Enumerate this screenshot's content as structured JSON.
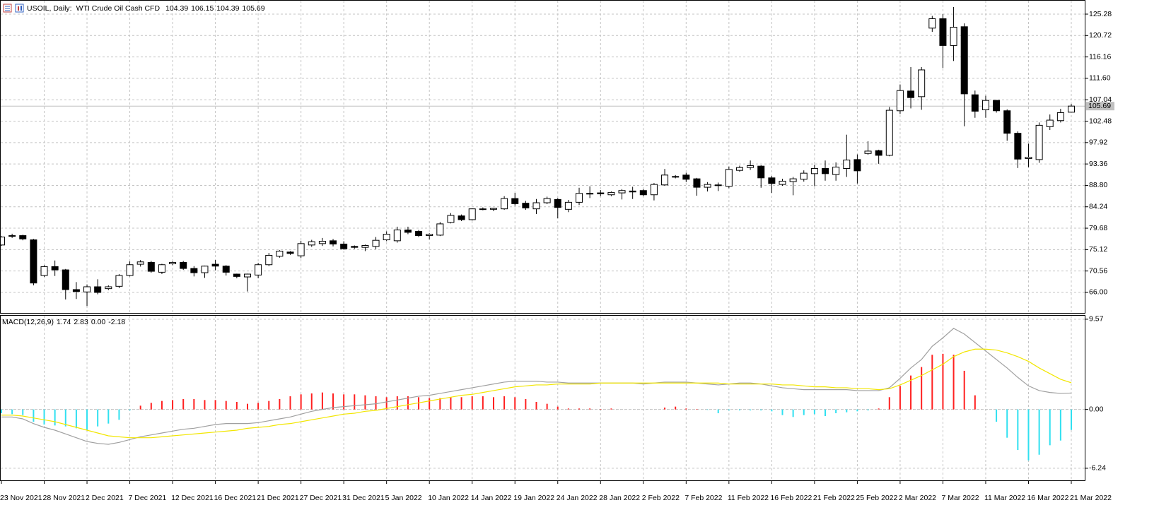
{
  "chart_data": [
    {
      "type": "candlestick",
      "title": "USOIL, Daily:",
      "subtitle": "WTI Crude Oil Cash CFD",
      "categories": [
        "23 Nov 2021",
        null,
        null,
        null,
        "28 Nov 2021",
        null,
        null,
        null,
        "2 Dec 2021",
        null,
        null,
        null,
        "7 Dec 2021",
        null,
        null,
        null,
        "12 Dec 2021",
        null,
        null,
        null,
        "16 Dec 2021",
        null,
        null,
        null,
        "21 Dec 2021",
        null,
        null,
        null,
        "27 Dec 2021",
        null,
        null,
        null,
        "31 Dec 2021",
        null,
        null,
        null,
        "5 Jan 2022",
        null,
        null,
        null,
        "10 Jan 2022",
        null,
        null,
        null,
        "14 Jan 2022",
        null,
        null,
        null,
        "19 Jan 2022",
        null,
        null,
        null,
        "24 Jan 2022",
        null,
        null,
        null,
        "28 Jan 2022",
        null,
        null,
        null,
        "2 Feb 2022",
        null,
        null,
        null,
        "7 Feb 2022",
        null,
        null,
        null,
        "11 Feb 2022",
        null,
        null,
        null,
        "16 Feb 2022",
        null,
        null,
        null,
        "21 Feb 2022",
        null,
        null,
        null,
        "25 Feb 2022",
        null,
        null,
        null,
        "2 Mar 2022",
        null,
        null,
        null,
        "7 Mar 2022",
        null,
        null,
        null,
        "11 Mar 2022",
        null,
        null,
        null,
        "16 Mar 2022",
        null,
        null,
        null,
        "21 Mar 2022"
      ],
      "open": [
        76.1,
        78.1,
        78.1,
        77.2,
        69.6,
        71.5,
        70.8,
        66.6,
        66.1,
        67.2,
        66.8,
        67.3,
        69.6,
        72.0,
        72.4,
        70.3,
        72.1,
        72.4,
        71.1,
        70.2,
        72.0,
        71.6,
        69.9,
        69.3,
        69.7,
        71.9,
        73.7,
        74.6,
        73.8,
        76.1,
        76.4,
        77.0,
        76.3,
        75.8,
        75.6,
        75.8,
        77.2,
        77.0,
        79.3,
        79.0,
        78.1,
        78.2,
        80.9,
        82.3,
        81.5,
        83.8,
        83.7,
        83.8,
        86.0,
        85.0,
        83.8,
        85.1,
        85.8,
        83.7,
        85.2,
        87.0,
        87.2,
        86.8,
        87.2,
        87.6,
        87.7,
        86.8,
        88.9,
        90.6,
        91.0,
        90.2,
        88.4,
        88.8,
        88.6,
        92.0,
        92.6,
        92.9,
        90.4,
        89.0,
        89.6,
        90.1,
        91.3,
        92.4,
        91.1,
        92.4,
        94.3,
        95.6,
        96.2,
        95.2,
        104.7,
        108.9,
        107.7,
        122.3,
        124.3,
        118.6,
        122.6,
        108.1,
        104.9,
        106.9,
        104.7,
        99.9,
        94.5,
        94.3,
        101.3,
        102.6,
        104.39
      ],
      "high": [
        78.0,
        78.5,
        78.3,
        77.4,
        71.8,
        72.8,
        71.0,
        68.2,
        67.7,
        68.8,
        67.5,
        69.9,
        72.6,
        72.9,
        72.7,
        72.1,
        72.6,
        72.7,
        71.6,
        71.7,
        72.9,
        71.8,
        70.0,
        70.0,
        72.3,
        74.4,
        75.0,
        74.8,
        77.0,
        77.2,
        77.6,
        77.4,
        76.9,
        76.0,
        76.2,
        77.8,
        79.0,
        80.0,
        80.0,
        79.3,
        78.6,
        81.0,
        82.9,
        82.6,
        83.9,
        84.1,
        84.0,
        86.5,
        87.2,
        85.5,
        85.9,
        86.4,
        86.1,
        85.7,
        88.3,
        88.6,
        87.8,
        87.5,
        88.0,
        88.5,
        88.0,
        89.3,
        92.3,
        91.0,
        91.5,
        90.4,
        89.5,
        89.4,
        92.8,
        93.0,
        94.1,
        93.1,
        90.8,
        90.2,
        90.6,
        92.0,
        93.2,
        94.1,
        93.7,
        99.6,
        95.4,
        98.2,
        96.4,
        105.5,
        110.3,
        114.0,
        114.0,
        124.9,
        125.3,
        126.8,
        123.3,
        109.0,
        107.9,
        107.0,
        105.0,
        100.3,
        97.7,
        102.2,
        103.9,
        105.1,
        106.15
      ],
      "low": [
        75.9,
        77.6,
        77.1,
        67.5,
        69.3,
        69.5,
        64.5,
        64.6,
        63.1,
        65.6,
        66.5,
        66.9,
        69.4,
        71.5,
        70.2,
        69.9,
        71.8,
        70.8,
        69.4,
        69.1,
        70.7,
        69.6,
        69.0,
        66.2,
        69.0,
        71.6,
        73.4,
        74.0,
        73.3,
        75.7,
        75.9,
        75.8,
        75.1,
        75.3,
        74.8,
        75.2,
        76.9,
        76.6,
        78.4,
        77.8,
        77.3,
        78.0,
        80.7,
        81.2,
        81.3,
        83.5,
        83.3,
        83.6,
        84.5,
        83.6,
        82.7,
        84.8,
        81.8,
        83.1,
        84.6,
        86.1,
        86.5,
        86.5,
        85.8,
        85.9,
        86.5,
        85.6,
        88.7,
        90.3,
        89.5,
        86.6,
        87.5,
        87.6,
        88.2,
        91.7,
        92.1,
        88.3,
        87.2,
        88.7,
        86.7,
        89.6,
        88.6,
        89.8,
        89.8,
        90.6,
        89.2,
        95.3,
        93.4,
        95.0,
        104.0,
        105.2,
        104.9,
        121.5,
        113.8,
        115.3,
        101.4,
        103.2,
        103.2,
        104.3,
        98.3,
        92.5,
        92.7,
        93.6,
        100.6,
        102.2,
        104.39
      ],
      "close": [
        77.8,
        78.0,
        77.4,
        68.0,
        71.5,
        70.8,
        66.6,
        66.2,
        67.2,
        66.0,
        67.2,
        69.6,
        71.9,
        72.5,
        70.5,
        71.9,
        72.4,
        71.1,
        70.2,
        71.6,
        71.6,
        70.3,
        69.4,
        69.9,
        71.9,
        73.9,
        74.8,
        74.3,
        76.4,
        76.8,
        76.9,
        76.3,
        75.3,
        75.6,
        76.0,
        77.1,
        78.4,
        79.3,
        78.8,
        78.1,
        78.4,
        80.6,
        82.4,
        81.5,
        83.8,
        83.7,
        83.9,
        86.0,
        84.9,
        84.0,
        85.1,
        86.0,
        84.1,
        85.2,
        87.1,
        87.1,
        87.0,
        87.3,
        87.7,
        87.4,
        86.8,
        89.0,
        91.0,
        90.7,
        90.1,
        88.4,
        89.0,
        88.9,
        92.2,
        92.6,
        93.0,
        90.4,
        89.2,
        89.7,
        90.2,
        91.4,
        92.4,
        91.3,
        92.7,
        94.2,
        91.9,
        96.1,
        95.2,
        104.8,
        109.0,
        107.5,
        113.4,
        124.3,
        118.6,
        122.5,
        108.3,
        104.6,
        106.9,
        104.7,
        99.9,
        94.4,
        94.8,
        101.6,
        102.7,
        104.3,
        105.69
      ],
      "up_color": "#ffffff",
      "down_color": "#000000",
      "wick_color": "#000000",
      "bid_color": "#c0c0c0",
      "ylim": [
        61.63,
        128.14
      ],
      "yticks": [
        125.28,
        120.72,
        116.16,
        {
          "value": 111.6,
          "label": "111.60"
        },
        107.04,
        102.48,
        97.92,
        93.36,
        {
          "value": 88.8,
          "label": "88.80"
        },
        84.24,
        79.68,
        75.12,
        70.56,
        {
          "value": 66,
          "label": "66.00"
        }
      ],
      "grid": true
    },
    {
      "type": "macd",
      "title": "MACD(12,26,9)",
      "series": [
        {
          "color": "#a0a0a0",
          "values": [
            -0.8,
            -0.8,
            -1.0,
            -1.5,
            -1.9,
            -2.2,
            -2.6,
            -3.0,
            -3.4,
            -3.6,
            -3.7,
            -3.5,
            -3.2,
            -2.9,
            -2.7,
            -2.5,
            -2.3,
            -2.1,
            -2.0,
            -1.8,
            -1.6,
            -1.5,
            -1.5,
            -1.5,
            -1.4,
            -1.2,
            -1.0,
            -0.8,
            -0.5,
            -0.2,
            0.0,
            0.2,
            0.3,
            0.4,
            0.5,
            0.6,
            0.8,
            1.0,
            1.2,
            1.4,
            1.5,
            1.7,
            1.9,
            2.1,
            2.3,
            2.5,
            2.7,
            2.9,
            3.0,
            3.0,
            3.0,
            2.9,
            2.9,
            2.8,
            2.8,
            2.8,
            2.8,
            2.8,
            2.8,
            2.8,
            2.7,
            2.8,
            2.9,
            2.9,
            2.9,
            2.8,
            2.7,
            2.6,
            2.7,
            2.8,
            2.8,
            2.7,
            2.5,
            2.3,
            2.2,
            2.1,
            2.1,
            2.1,
            2.1,
            2.1,
            2.0,
            2.0,
            2.0,
            2.3,
            3.3,
            4.4,
            5.3,
            6.7,
            7.6,
            8.6,
            8.0,
            7.1,
            6.2,
            5.3,
            4.4,
            3.4,
            2.5,
            2.0,
            1.8,
            1.7,
            1.74
          ]
        },
        {
          "color": "#f2e600",
          "values": [
            -0.6,
            -0.6,
            -0.7,
            -0.9,
            -1.1,
            -1.3,
            -1.6,
            -1.9,
            -2.2,
            -2.5,
            -2.8,
            -2.9,
            -3.0,
            -3.0,
            -3.0,
            -2.9,
            -2.8,
            -2.7,
            -2.6,
            -2.5,
            -2.4,
            -2.3,
            -2.2,
            -2.0,
            -1.9,
            -1.8,
            -1.6,
            -1.5,
            -1.3,
            -1.1,
            -0.9,
            -0.7,
            -0.5,
            -0.4,
            -0.2,
            -0.1,
            0.1,
            0.3,
            0.5,
            0.7,
            0.9,
            1.1,
            1.3,
            1.5,
            1.6,
            1.8,
            2.0,
            2.2,
            2.4,
            2.5,
            2.6,
            2.6,
            2.7,
            2.7,
            2.7,
            2.7,
            2.8,
            2.8,
            2.8,
            2.8,
            2.8,
            2.8,
            2.8,
            2.8,
            2.8,
            2.8,
            2.8,
            2.8,
            2.7,
            2.7,
            2.7,
            2.7,
            2.7,
            2.6,
            2.6,
            2.5,
            2.4,
            2.4,
            2.3,
            2.3,
            2.2,
            2.2,
            2.1,
            2.2,
            2.6,
            3.1,
            3.6,
            4.2,
            4.8,
            5.6,
            6.1,
            6.4,
            6.4,
            6.3,
            6.0,
            5.6,
            5.1,
            4.4,
            3.8,
            3.2,
            2.83
          ]
        }
      ],
      "histogram": {
        "up_color": "#ff2020",
        "down_color": "#30e0f0",
        "values": [
          -0.4,
          -0.5,
          -0.6,
          -1.3,
          -1.6,
          -1.7,
          -1.8,
          -2.0,
          -2.2,
          -1.8,
          -1.5,
          -1.1,
          -0.1,
          0.4,
          0.7,
          0.9,
          1.0,
          1.1,
          1.1,
          1.0,
          1.0,
          0.9,
          0.8,
          0.6,
          0.7,
          0.9,
          1.1,
          1.4,
          1.6,
          1.7,
          1.8,
          1.7,
          1.6,
          1.6,
          1.5,
          1.4,
          1.3,
          1.4,
          1.4,
          1.3,
          1.2,
          1.2,
          1.3,
          1.3,
          1.4,
          1.4,
          1.3,
          1.4,
          1.3,
          1.1,
          0.8,
          0.6,
          0.3,
          0.1,
          0.1,
          0.1,
          0.05,
          0.1,
          0.0,
          0.0,
          0.0,
          0.0,
          0.2,
          0.3,
          0.1,
          0.05,
          -0.05,
          -0.4,
          -0.1,
          -0.1,
          -0.1,
          -0.1,
          -0.2,
          -0.6,
          -0.8,
          -0.6,
          -0.5,
          -0.7,
          -0.4,
          -0.3,
          -0.2,
          -0.1,
          0.1,
          1.3,
          2.5,
          3.6,
          4.5,
          5.8,
          5.9,
          5.8,
          4.1,
          1.5,
          0.0,
          -1.3,
          -3.0,
          -4.3,
          -5.4,
          -4.8,
          -3.8,
          -3.3,
          -2.18
        ]
      },
      "level": {
        "value": 0,
        "label": "0.00"
      },
      "ylim": [
        -7.52,
        9.94
      ],
      "yticks": [
        9.57,
        {
          "value": 0,
          "label": "0.00"
        },
        -6.24
      ],
      "grid": true
    }
  ]
}
